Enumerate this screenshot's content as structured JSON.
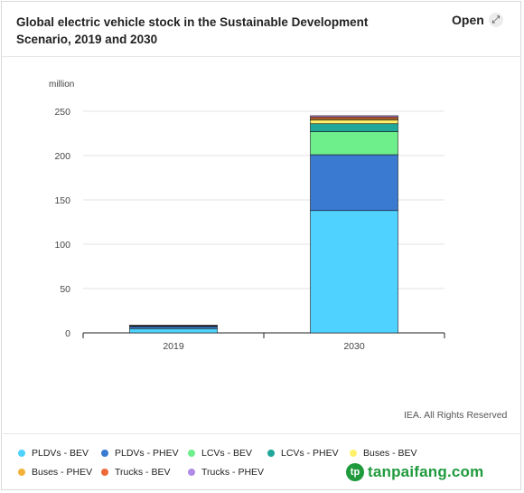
{
  "title": "Global electric vehicle stock in the Sustainable Development Scenario, 2019 and 2030",
  "open_button": {
    "label": "Open",
    "icon": "expand-icon"
  },
  "unit_label": "million",
  "credit": "IEA. All Rights Reserved",
  "watermark": {
    "text": "tanpaifang.com"
  },
  "chart_data": {
    "type": "bar",
    "stacked": true,
    "categories": [
      "2019",
      "2030"
    ],
    "ylim": [
      0,
      250
    ],
    "yticks": [
      0,
      50,
      100,
      150,
      200,
      250
    ],
    "ylabel": "million",
    "grid": true,
    "legend_position": "bottom",
    "series": [
      {
        "name": "PLDVs - BEV",
        "color": "#4fd2ff",
        "values": [
          4.8,
          138
        ]
      },
      {
        "name": "PLDVs - PHEV",
        "color": "#3a7ad0",
        "values": [
          2.4,
          63
        ]
      },
      {
        "name": "LCVs - BEV",
        "color": "#6fef8c",
        "values": [
          0.4,
          26
        ]
      },
      {
        "name": "LCVs - PHEV",
        "color": "#1fa79a",
        "values": [
          0.2,
          9
        ]
      },
      {
        "name": "Buses - BEV",
        "color": "#fff26a",
        "values": [
          0.5,
          4
        ]
      },
      {
        "name": "Buses - PHEV",
        "color": "#f2b23a",
        "values": [
          0.1,
          1.5
        ]
      },
      {
        "name": "Trucks - BEV",
        "color": "#ef6a3a",
        "values": [
          0.1,
          2
        ]
      },
      {
        "name": "Trucks - PHEV",
        "color": "#b08be6",
        "values": [
          0.05,
          1.5
        ]
      }
    ]
  }
}
